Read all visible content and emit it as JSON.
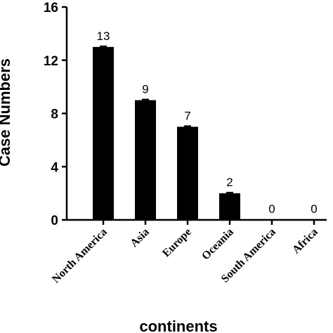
{
  "chart_data": {
    "type": "bar",
    "categories": [
      "North America",
      "Asia",
      "Europe",
      "Oceania",
      "South America",
      "Africa"
    ],
    "values": [
      13,
      9,
      7,
      2,
      0,
      0
    ],
    "data_labels": [
      "13",
      "9",
      "7",
      "2",
      "0",
      "0"
    ],
    "xlabel": "continents",
    "ylabel": "Case Numbers",
    "ylim": [
      0,
      16
    ],
    "yticks": [
      0,
      4,
      8,
      12,
      16
    ],
    "ytick_labels": [
      "0",
      "4",
      "8",
      "12",
      "16"
    ],
    "grid": false,
    "legend": "none",
    "bar_color": "#000000"
  }
}
